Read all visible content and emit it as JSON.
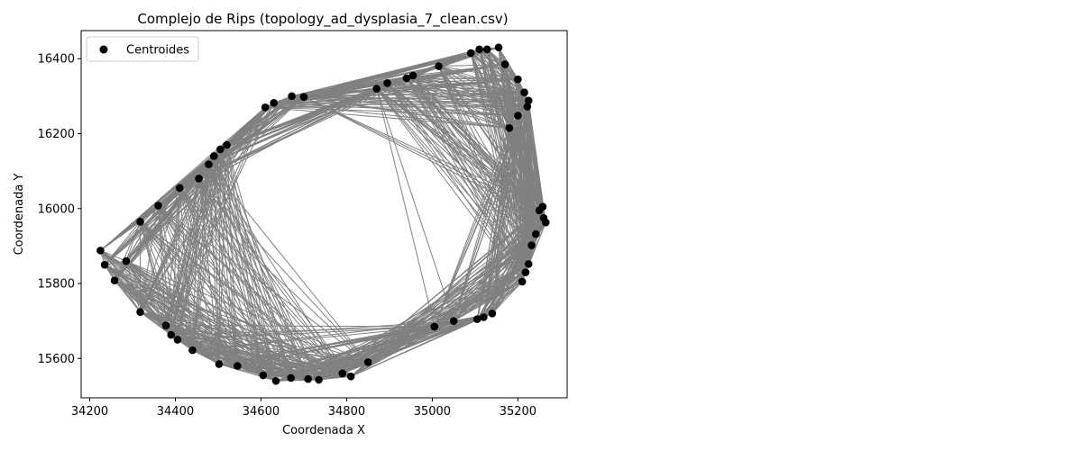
{
  "chart_data": {
    "type": "scatter",
    "title": "Complejo de Rips (topology_ad_dysplasia_7_clean.csv)",
    "xlabel": "Coordenada X",
    "ylabel": "Coordenada Y",
    "xlim": [
      34180,
      35315
    ],
    "ylim": [
      15495,
      16475
    ],
    "xticks": [
      34200,
      34400,
      34600,
      34800,
      35000,
      35200
    ],
    "yticks": [
      15600,
      15800,
      16000,
      16200,
      16400
    ],
    "grid": false,
    "legend": {
      "position": "top-left",
      "label": "Centroides"
    },
    "colors": {
      "points": "#000000",
      "edges": "#808080"
    },
    "series": [
      {
        "name": "Centroides",
        "points": [
          [
            34225,
            15888
          ],
          [
            34235,
            15850
          ],
          [
            34258,
            15808
          ],
          [
            34285,
            15860
          ],
          [
            34318,
            15724
          ],
          [
            34318,
            15965
          ],
          [
            34360,
            16008
          ],
          [
            34378,
            15688
          ],
          [
            34390,
            15663
          ],
          [
            34405,
            15650
          ],
          [
            34410,
            16055
          ],
          [
            34440,
            15622
          ],
          [
            34455,
            16080
          ],
          [
            34478,
            16118
          ],
          [
            34490,
            16140
          ],
          [
            34502,
            15585
          ],
          [
            34505,
            16158
          ],
          [
            34520,
            16170
          ],
          [
            34545,
            15580
          ],
          [
            34605,
            15555
          ],
          [
            34610,
            16270
          ],
          [
            34630,
            16282
          ],
          [
            34635,
            15540
          ],
          [
            34670,
            15548
          ],
          [
            34672,
            16300
          ],
          [
            34700,
            16298
          ],
          [
            34710,
            15545
          ],
          [
            34735,
            15543
          ],
          [
            34790,
            15560
          ],
          [
            34810,
            15552
          ],
          [
            34850,
            15590
          ],
          [
            34870,
            16320
          ],
          [
            34895,
            16335
          ],
          [
            34940,
            16348
          ],
          [
            34955,
            16355
          ],
          [
            35005,
            15685
          ],
          [
            35015,
            16380
          ],
          [
            35050,
            15700
          ],
          [
            35090,
            16415
          ],
          [
            35105,
            15705
          ],
          [
            35110,
            16425
          ],
          [
            35120,
            15710
          ],
          [
            35128,
            16425
          ],
          [
            35140,
            15720
          ],
          [
            35155,
            16430
          ],
          [
            35170,
            16385
          ],
          [
            35180,
            16215
          ],
          [
            35200,
            16345
          ],
          [
            35200,
            16248
          ],
          [
            35210,
            15805
          ],
          [
            35215,
            16310
          ],
          [
            35218,
            15830
          ],
          [
            35222,
            16272
          ],
          [
            35225,
            15852
          ],
          [
            35225,
            16288
          ],
          [
            35232,
            15902
          ],
          [
            35242,
            15932
          ],
          [
            35250,
            15995
          ],
          [
            35258,
            16005
          ],
          [
            35260,
            15975
          ],
          [
            35265,
            15963
          ]
        ]
      }
    ]
  }
}
